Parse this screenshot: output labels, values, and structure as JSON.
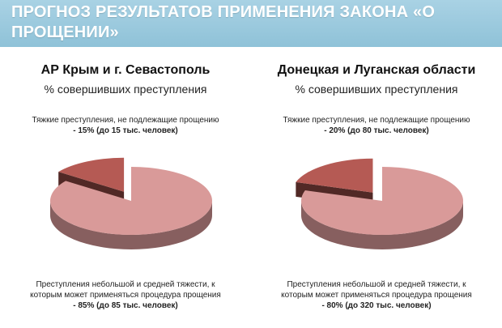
{
  "header": {
    "title": "ПРОГНОЗ РЕЗУЛЬТАТОВ ПРИМЕНЕНИЯ ЗАКОНА «О ПРОЩЕНИИ»"
  },
  "colors": {
    "header": "#97c8dc",
    "large_slice": "#d99a99",
    "small_slice": "#b55a54"
  },
  "panels": [
    {
      "region": "АР Крым и г. Севастополь",
      "subtitle": "% совершивших преступления",
      "small_label": "Тяжкие преступления, не подлежащие прощению",
      "small_value": "- 15% (до 15 тыс. человек)",
      "big_label_1": "Преступления небольшой и средней тяжести, к",
      "big_label_2": "которым может применяться процедура прощения",
      "big_value": "- 85% (до 85 тыс. человек)"
    },
    {
      "region": "Донецкая и Луганская области",
      "subtitle": "% совершивших преступления",
      "small_label": "Тяжкие преступления, не подлежащие прощению",
      "small_value": "- 20% (до 80 тыс. человек)",
      "big_label_1": "Преступления небольшой и средней тяжести, к",
      "big_label_2": "которым может применяться процедура прощения",
      "big_value": "- 80% (до 320 тыс. человек)"
    }
  ],
  "chart_data": [
    {
      "type": "pie",
      "title": "АР Крым и г. Севастополь",
      "subtitle": "% совершивших преступления",
      "categories": [
        "Тяжкие преступления, не подлежащие прощению",
        "Преступления небольшой и средней тяжести, к которым может применяться процедура прощения"
      ],
      "values": [
        15,
        85
      ],
      "colors": [
        "#b55a54",
        "#d99a99"
      ],
      "style": "3d-exploded"
    },
    {
      "type": "pie",
      "title": "Донецкая и Луганская области",
      "subtitle": "% совершивших преступления",
      "categories": [
        "Тяжкие преступления, не подлежащие прощению",
        "Преступления небольшой и средней тяжести, к которым может применяться процедура прощения"
      ],
      "values": [
        20,
        80
      ],
      "colors": [
        "#b55a54",
        "#d99a99"
      ],
      "style": "3d-exploded"
    }
  ]
}
